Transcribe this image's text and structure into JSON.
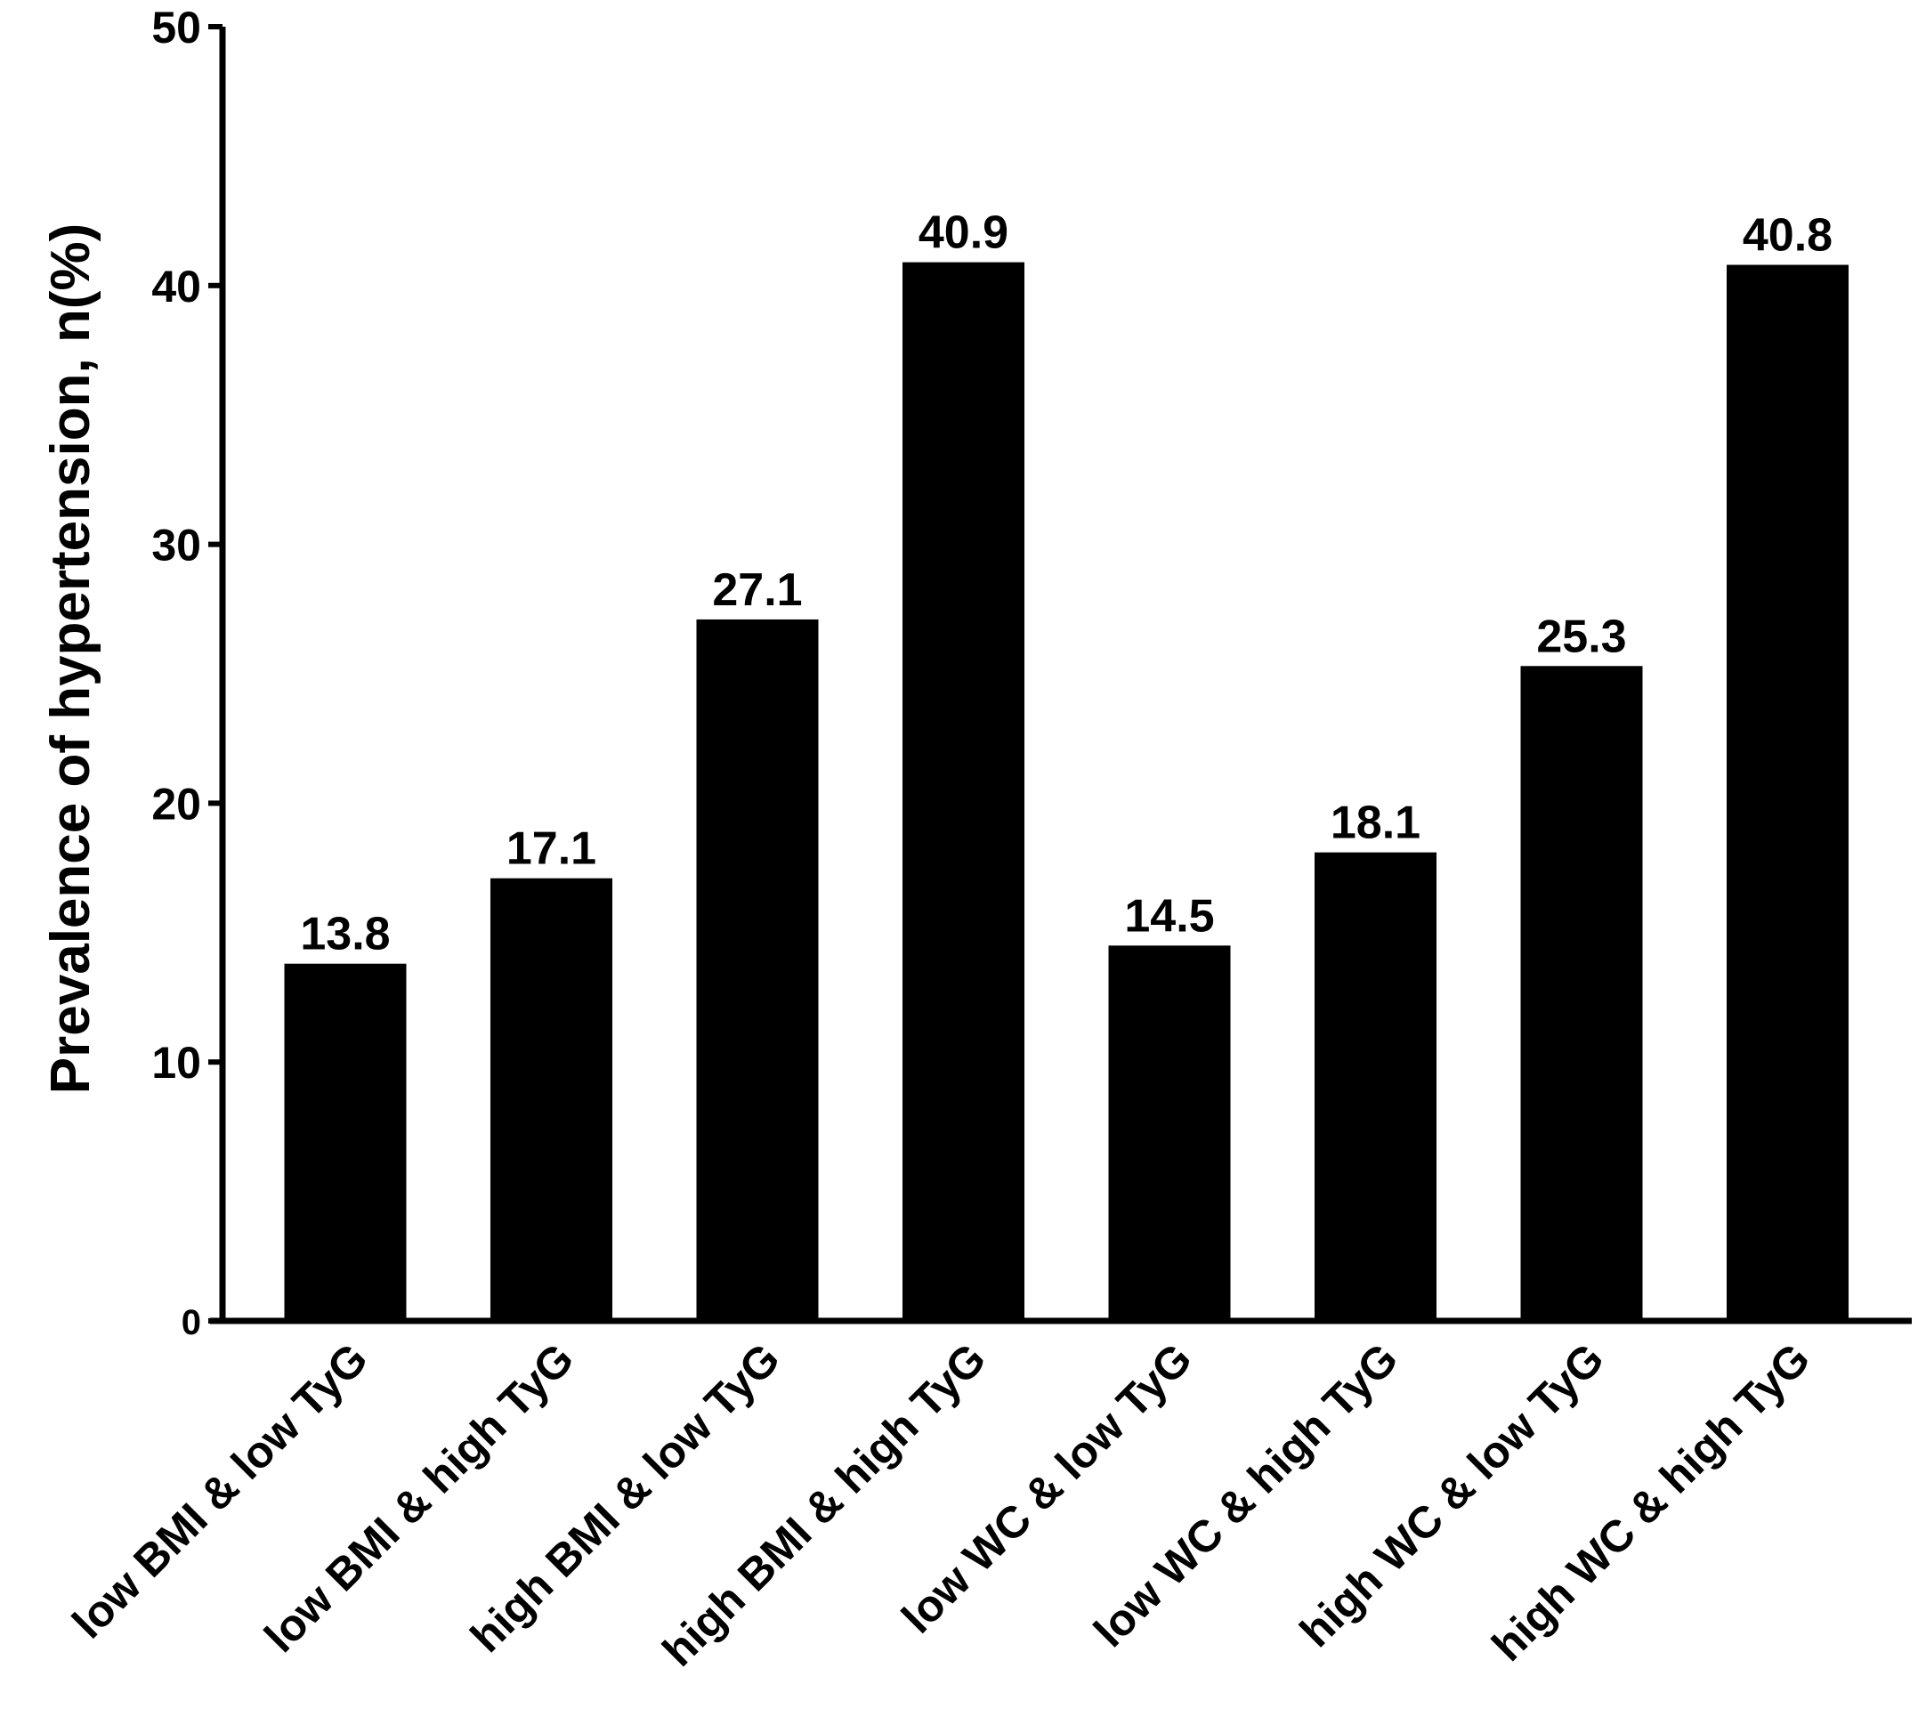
{
  "chart_data": {
    "type": "bar",
    "title": "",
    "xlabel": "",
    "ylabel": "Prevalence of hypertension, n(%)",
    "ylim": [
      0,
      50
    ],
    "yticks": [
      0,
      10,
      20,
      30,
      40,
      50
    ],
    "ytick_labels": [
      "0",
      "10",
      "20",
      "30",
      "40",
      "50"
    ],
    "categories": [
      "low BMI & low TyG",
      "low BMI & high TyG",
      "high BMI & low TyG",
      "high BMI & high TyG",
      "low WC & low TyG",
      "low WC & high TyG",
      "high WC & low TyG",
      "high WC & high TyG"
    ],
    "values": [
      13.8,
      17.1,
      27.1,
      40.9,
      14.5,
      18.1,
      25.3,
      40.8
    ],
    "value_labels": [
      "13.8",
      "17.1",
      "27.1",
      "40.9",
      "14.5",
      "18.1",
      "25.3",
      "40.8"
    ],
    "bar_color": "#000000",
    "grid": false,
    "legend": "none"
  }
}
